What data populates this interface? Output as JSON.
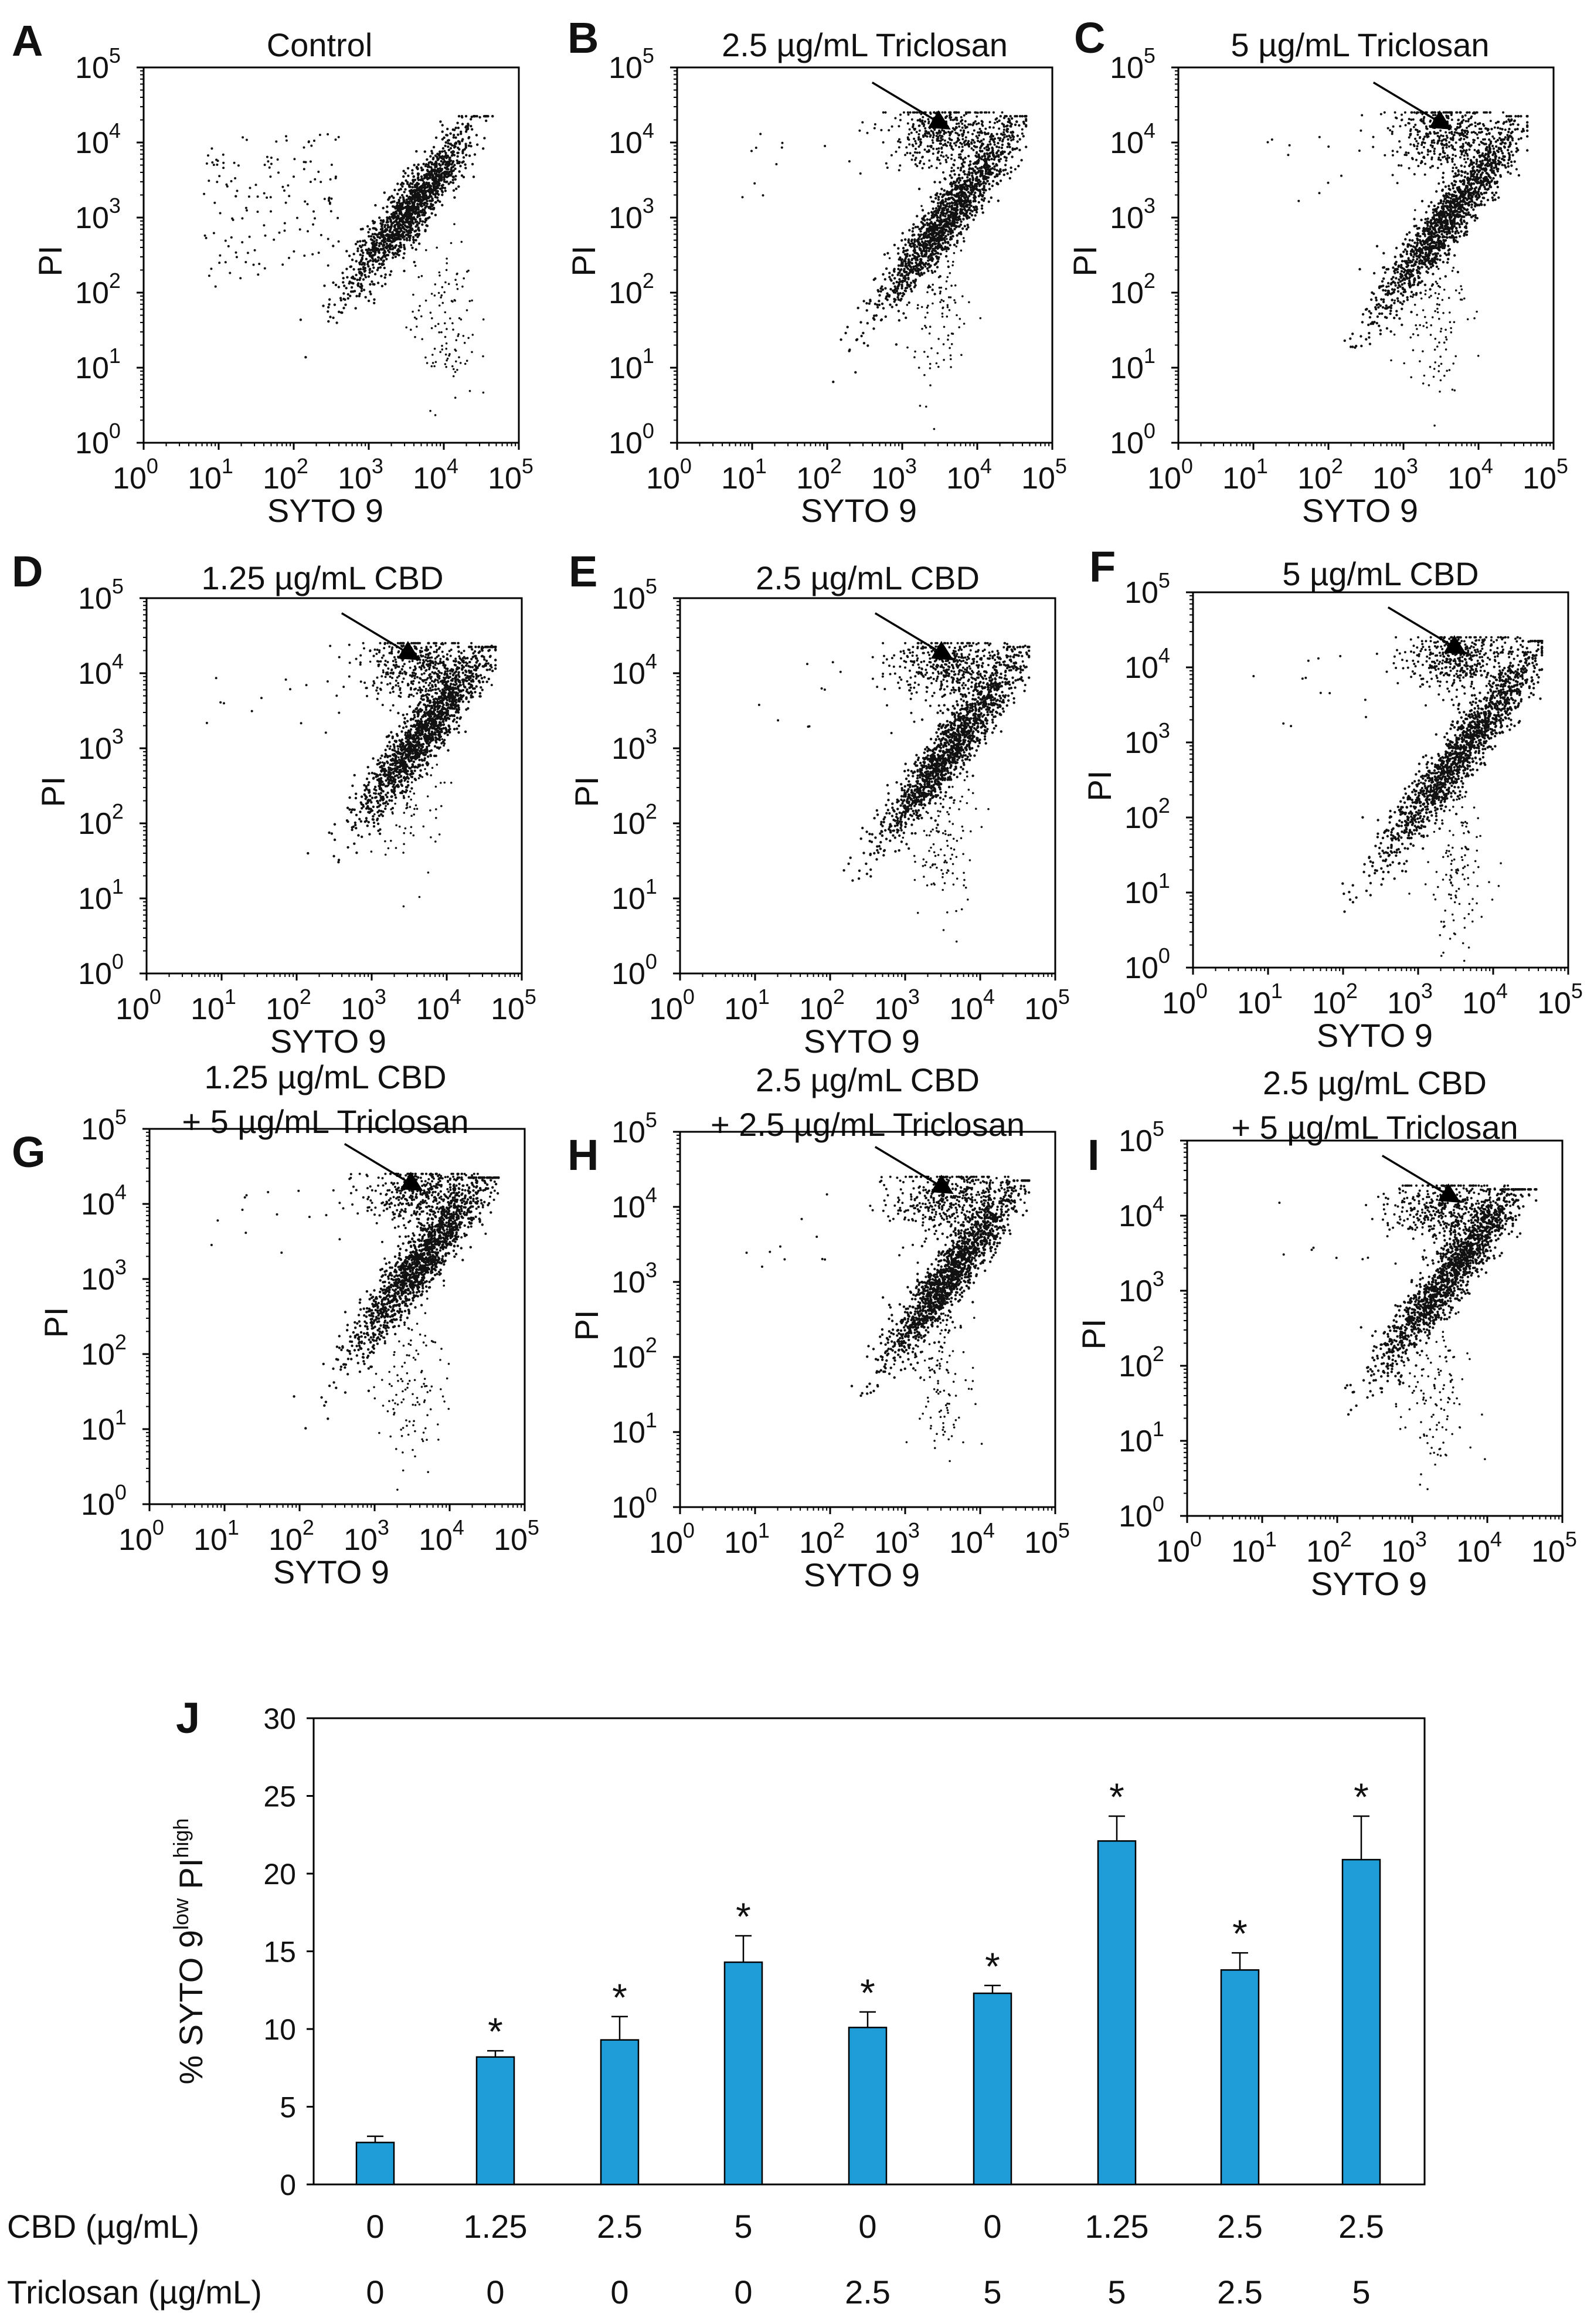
{
  "chart_data": [
    {
      "type": "scatter",
      "panel": "A",
      "title": [
        "Control"
      ],
      "xlabel": "SYTO 9",
      "ylabel": "PI",
      "scale": "log10",
      "xlim": [
        0,
        5
      ],
      "ylim": [
        0,
        5
      ],
      "x_ticks": [
        "10",
        "10",
        "10",
        "10",
        "10",
        "10"
      ],
      "x_tick_exp": [
        "0",
        "1",
        "2",
        "3",
        "4",
        "5"
      ],
      "y_ticks": [
        "10",
        "10",
        "10",
        "10",
        "10",
        "10"
      ],
      "y_tick_exp": [
        "0",
        "1",
        "2",
        "3",
        "4",
        "5"
      ],
      "arrow": false,
      "clusters": {
        "main": [
          3.55,
          3.1
        ],
        "spread": 0.5,
        "tail": [
          3.7,
          1.6
        ],
        "scatter_region": [
          [
            0.8,
            2.0
          ],
          [
            2.6,
            4.0
          ]
        ]
      }
    },
    {
      "type": "scatter",
      "panel": "B",
      "title": [
        "2.5 µg/mL Triclosan"
      ],
      "xlabel": "SYTO 9",
      "ylabel": "PI",
      "scale": "log10",
      "xlim": [
        0,
        5
      ],
      "ylim": [
        0,
        5
      ],
      "x_ticks": [
        "10",
        "10",
        "10",
        "10",
        "10",
        "10"
      ],
      "x_tick_exp": [
        "0",
        "1",
        "2",
        "3",
        "4",
        "5"
      ],
      "y_ticks": [
        "10",
        "10",
        "10",
        "10",
        "10",
        "10"
      ],
      "y_tick_exp": [
        "0",
        "1",
        "2",
        "3",
        "4",
        "5"
      ],
      "arrow": true,
      "clusters": {
        "main": [
          3.6,
          3.0
        ],
        "spread": 0.6,
        "upper": [
          3.6,
          4.1
        ],
        "tail": [
          3.2,
          1.8
        ]
      }
    },
    {
      "type": "scatter",
      "panel": "C",
      "title": [
        "5 µg/mL Triclosan"
      ],
      "xlabel": "SYTO 9",
      "ylabel": "PI",
      "scale": "log10",
      "xlim": [
        0,
        5
      ],
      "ylim": [
        0,
        5
      ],
      "x_ticks": [
        "10",
        "10",
        "10",
        "10",
        "10",
        "10"
      ],
      "x_tick_exp": [
        "0",
        "1",
        "2",
        "3",
        "4",
        "5"
      ],
      "y_ticks": [
        "10",
        "10",
        "10",
        "10",
        "10",
        "10"
      ],
      "y_tick_exp": [
        "0",
        "1",
        "2",
        "3",
        "4",
        "5"
      ],
      "arrow": true,
      "clusters": {
        "main": [
          3.6,
          3.0
        ],
        "spread": 0.6,
        "upper": [
          3.6,
          4.1
        ],
        "tail": [
          3.1,
          1.8
        ]
      }
    },
    {
      "type": "scatter",
      "panel": "D",
      "title": [
        "1.25 µg/mL CBD"
      ],
      "xlabel": "SYTO 9",
      "ylabel": "PI",
      "scale": "log10",
      "xlim": [
        0,
        5
      ],
      "ylim": [
        0,
        5
      ],
      "x_ticks": [
        "10",
        "10",
        "10",
        "10",
        "10",
        "10"
      ],
      "x_tick_exp": [
        "0",
        "1",
        "2",
        "3",
        "4",
        "5"
      ],
      "y_ticks": [
        "10",
        "10",
        "10",
        "10",
        "10",
        "10"
      ],
      "y_tick_exp": [
        "0",
        "1",
        "2",
        "3",
        "4",
        "5"
      ],
      "arrow": true,
      "clusters": {
        "main": [
          3.7,
          3.2
        ],
        "spread": 0.55,
        "upper": [
          3.6,
          4.1
        ],
        "tail": [
          3.2,
          2.4
        ]
      }
    },
    {
      "type": "scatter",
      "panel": "E",
      "title": [
        "2.5 µg/mL CBD"
      ],
      "xlabel": "SYTO 9",
      "ylabel": "PI",
      "scale": "log10",
      "xlim": [
        0,
        5
      ],
      "ylim": [
        0,
        5
      ],
      "x_ticks": [
        "10",
        "10",
        "10",
        "10",
        "10",
        "10"
      ],
      "x_tick_exp": [
        "0",
        "1",
        "2",
        "3",
        "4",
        "5"
      ],
      "y_ticks": [
        "10",
        "10",
        "10",
        "10",
        "10",
        "10"
      ],
      "y_tick_exp": [
        "0",
        "1",
        "2",
        "3",
        "4",
        "5"
      ],
      "arrow": true,
      "clusters": {
        "main": [
          3.6,
          3.0
        ],
        "spread": 0.6,
        "upper": [
          3.6,
          4.1
        ],
        "tail": [
          3.2,
          1.7
        ]
      }
    },
    {
      "type": "scatter",
      "panel": "F",
      "title": [
        "5 µg/mL CBD"
      ],
      "xlabel": "SYTO 9",
      "ylabel": "PI",
      "scale": "log10",
      "xlim": [
        0,
        5
      ],
      "ylim": [
        0,
        5
      ],
      "x_ticks": [
        "10",
        "10",
        "10",
        "10",
        "10",
        "10"
      ],
      "x_tick_exp": [
        "0",
        "1",
        "2",
        "3",
        "4",
        "5"
      ],
      "y_ticks": [
        "10",
        "10",
        "10",
        "10",
        "10",
        "10"
      ],
      "y_tick_exp": [
        "0",
        "1",
        "2",
        "3",
        "4",
        "5"
      ],
      "arrow": true,
      "clusters": {
        "main": [
          3.6,
          2.9
        ],
        "spread": 0.7,
        "upper": [
          3.6,
          4.1
        ],
        "tail": [
          3.2,
          1.2
        ]
      }
    },
    {
      "type": "scatter",
      "panel": "G",
      "title": [
        "1.25 µg/mL CBD",
        "+ 5 µg/mL Triclosan"
      ],
      "xlabel": "SYTO 9",
      "ylabel": "PI",
      "scale": "log10",
      "xlim": [
        0,
        5
      ],
      "ylim": [
        0,
        5
      ],
      "x_ticks": [
        "10",
        "10",
        "10",
        "10",
        "10",
        "10"
      ],
      "x_tick_exp": [
        "0",
        "1",
        "2",
        "3",
        "4",
        "5"
      ],
      "y_ticks": [
        "10",
        "10",
        "10",
        "10",
        "10",
        "10"
      ],
      "y_tick_exp": [
        "0",
        "1",
        "2",
        "3",
        "4",
        "5"
      ],
      "arrow": true,
      "clusters": {
        "main": [
          3.6,
          3.2
        ],
        "spread": 0.6,
        "upper": [
          3.6,
          4.1
        ],
        "tail": [
          3.2,
          1.6
        ]
      }
    },
    {
      "type": "scatter",
      "panel": "H",
      "title": [
        "2.5 µg/mL CBD",
        "+ 2.5 µg/mL Triclosan"
      ],
      "xlabel": "SYTO 9",
      "ylabel": "PI",
      "scale": "log10",
      "xlim": [
        0,
        5
      ],
      "ylim": [
        0,
        5
      ],
      "x_ticks": [
        "10",
        "10",
        "10",
        "10",
        "10",
        "10"
      ],
      "x_tick_exp": [
        "0",
        "1",
        "2",
        "3",
        "4",
        "5"
      ],
      "y_ticks": [
        "10",
        "10",
        "10",
        "10",
        "10",
        "10"
      ],
      "y_tick_exp": [
        "0",
        "1",
        "2",
        "3",
        "4",
        "5"
      ],
      "arrow": true,
      "clusters": {
        "main": [
          3.6,
          3.1
        ],
        "spread": 0.55,
        "upper": [
          3.6,
          4.1
        ],
        "tail": [
          3.2,
          1.8
        ]
      }
    },
    {
      "type": "scatter",
      "panel": "I",
      "title": [
        "2.5 µg/mL CBD",
        "+ 5 µg/mL Triclosan"
      ],
      "xlabel": "SYTO 9",
      "ylabel": "PI",
      "scale": "log10",
      "xlim": [
        0,
        5
      ],
      "ylim": [
        0,
        5
      ],
      "x_ticks": [
        "10",
        "10",
        "10",
        "10",
        "10",
        "10"
      ],
      "x_tick_exp": [
        "0",
        "1",
        "2",
        "3",
        "4",
        "5"
      ],
      "y_ticks": [
        "10",
        "10",
        "10",
        "10",
        "10",
        "10"
      ],
      "y_tick_exp": [
        "0",
        "1",
        "2",
        "3",
        "4",
        "5"
      ],
      "arrow": true,
      "clusters": {
        "main": [
          3.5,
          3.2
        ],
        "spread": 0.6,
        "upper": [
          3.5,
          4.1
        ],
        "tail": [
          3.0,
          1.5
        ]
      }
    },
    {
      "type": "bar",
      "panel": "J",
      "title": "",
      "ylabel_parts": [
        "% SYTO 9",
        "low",
        " PI",
        "high"
      ],
      "ylim": [
        0,
        30
      ],
      "yticks": [
        "0",
        "5",
        "10",
        "15",
        "20",
        "25",
        "30"
      ],
      "row_labels": [
        "CBD (µg/mL)",
        "Triclosan (µg/mL)"
      ],
      "cbd": [
        "0",
        "1.25",
        "2.5",
        "5",
        "0",
        "0",
        "1.25",
        "2.5",
        "2.5"
      ],
      "triclosan": [
        "0",
        "0",
        "0",
        "0",
        "2.5",
        "5",
        "5",
        "2.5",
        "5"
      ],
      "values": [
        2.7,
        8.2,
        9.3,
        14.3,
        10.1,
        12.3,
        22.1,
        13.8,
        20.9
      ],
      "errors": [
        0.4,
        0.4,
        1.5,
        1.7,
        1.0,
        0.5,
        1.6,
        1.1,
        2.8
      ],
      "significant": [
        "",
        "*",
        "*",
        "*",
        "*",
        "*",
        "*",
        "*",
        "*"
      ],
      "color": "#1f9dd8"
    }
  ]
}
